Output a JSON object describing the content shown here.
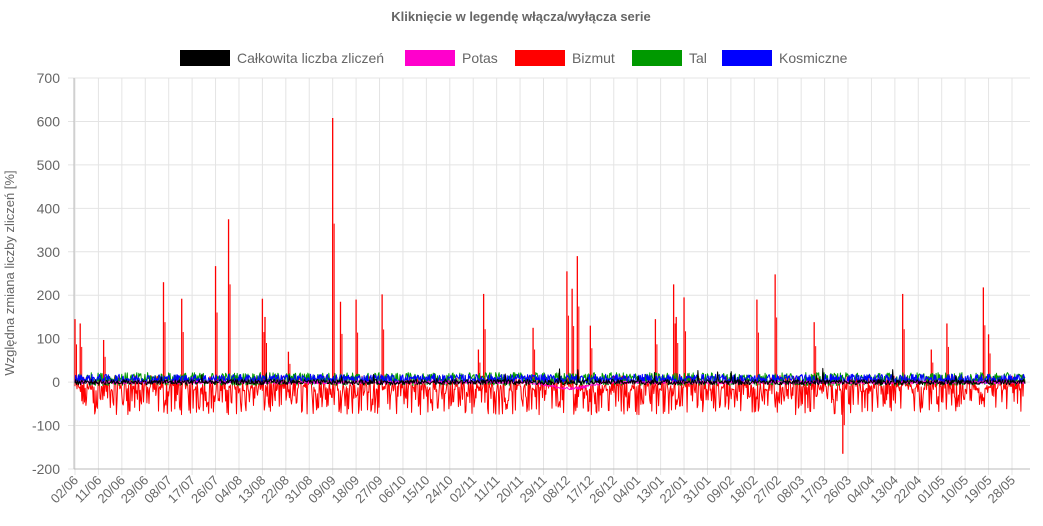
{
  "chart_data": {
    "type": "line",
    "title": "Kliknięcie w legendę włącza/wyłącza serie",
    "xlabel": "",
    "ylabel": "Względna zmiana liczby zliczeń [%]",
    "ylim": [
      -200,
      700
    ],
    "yticks": [
      700,
      600,
      500,
      400,
      300,
      200,
      100,
      0,
      -100,
      -200
    ],
    "grid": true,
    "legend_position": "top",
    "xtick_labels": [
      "02/06",
      "11/06",
      "20/06",
      "29/06",
      "08/07",
      "17/07",
      "26/07",
      "04/08",
      "13/08",
      "22/08",
      "31/08",
      "09/09",
      "18/09",
      "27/09",
      "06/10",
      "15/10",
      "24/10",
      "02/11",
      "11/11",
      "20/11",
      "29/11",
      "08/12",
      "17/12",
      "26/12",
      "04/01",
      "13/01",
      "22/01",
      "31/01",
      "09/02",
      "18/02",
      "27/02",
      "08/03",
      "17/03",
      "26/03",
      "04/04",
      "13/04",
      "22/04",
      "01/05",
      "10/05",
      "19/05",
      "28/05"
    ],
    "xtick_step_days": 9,
    "x_range_days": [
      0,
      365
    ],
    "series": [
      {
        "name": "Całkowita liczba zliczeń",
        "color": "#000000",
        "typical_range": [
          -6,
          6
        ]
      },
      {
        "name": "Potas",
        "color": "#ff00cc",
        "typical_range": [
          -4,
          3
        ],
        "dip": {
          "day": 190,
          "value": -15
        }
      },
      {
        "name": "Bizmut",
        "color": "#ff0000",
        "typical_range": [
          -75,
          15
        ],
        "spikes": [
          {
            "day": 0,
            "value": 145
          },
          {
            "day": 2,
            "value": 135
          },
          {
            "day": 11,
            "value": 97
          },
          {
            "day": 34,
            "value": 230
          },
          {
            "day": 41,
            "value": 192
          },
          {
            "day": 54,
            "value": 267
          },
          {
            "day": 59,
            "value": 375
          },
          {
            "day": 72,
            "value": 192
          },
          {
            "day": 73,
            "value": 150
          },
          {
            "day": 82,
            "value": 70
          },
          {
            "day": 99,
            "value": 608
          },
          {
            "day": 102,
            "value": 185
          },
          {
            "day": 108,
            "value": 190
          },
          {
            "day": 118,
            "value": 202
          },
          {
            "day": 155,
            "value": 75
          },
          {
            "day": 157,
            "value": 203
          },
          {
            "day": 176,
            "value": 125
          },
          {
            "day": 189,
            "value": 255
          },
          {
            "day": 191,
            "value": 215
          },
          {
            "day": 193,
            "value": 290
          },
          {
            "day": 198,
            "value": 130
          },
          {
            "day": 223,
            "value": 145
          },
          {
            "day": 230,
            "value": 225
          },
          {
            "day": 231,
            "value": 150
          },
          {
            "day": 234,
            "value": 195
          },
          {
            "day": 262,
            "value": 190
          },
          {
            "day": 269,
            "value": 248
          },
          {
            "day": 284,
            "value": 138
          },
          {
            "day": 295,
            "value": -165
          },
          {
            "day": 318,
            "value": 203
          },
          {
            "day": 329,
            "value": 75
          },
          {
            "day": 335,
            "value": 135
          },
          {
            "day": 349,
            "value": 218
          },
          {
            "day": 351,
            "value": 110
          }
        ]
      },
      {
        "name": "Tal",
        "color": "#009900",
        "typical_range": [
          -8,
          22
        ]
      },
      {
        "name": "Kosmiczne",
        "color": "#0000ff",
        "typical_range": [
          -3,
          18
        ]
      }
    ]
  }
}
